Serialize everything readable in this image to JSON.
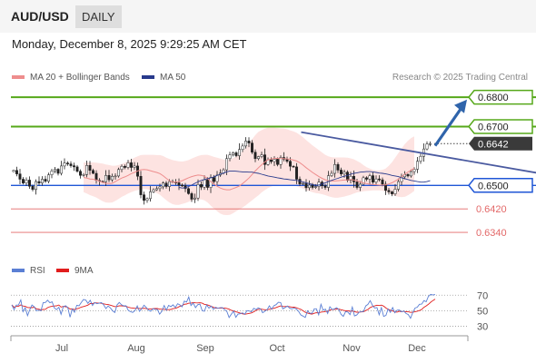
{
  "header": {
    "symbol": "AUD/USD",
    "timeframe": "DAILY",
    "datetime": "Monday, December 8, 2025 9:29:25 AM CET"
  },
  "legend": {
    "ma20_label": "MA 20 + Bollinger Bands",
    "ma50_label": "MA 50",
    "credit": "Research © 2025 Trading Central",
    "rsi_label": "RSI",
    "rsi_ma_label": "9MA"
  },
  "colors": {
    "ma20": "#ee8d8d",
    "bollinger_fill": "#fde3e1",
    "ma50": "#283a8c",
    "resistance": "#56a81a",
    "support": "#1f56d6",
    "minor_support": "#e36868",
    "trendline": "#4a5aa0",
    "arrow": "#2f64ab",
    "rsi": "#5b7fd4",
    "rsi_ma": "#e11d1d"
  },
  "chart_data": [
    {
      "type": "candlestick",
      "title": "AUD/USD",
      "timeframe": "Daily",
      "ylim": [
        0.626,
        0.6822
      ],
      "x_tick_labels": [
        "Jul",
        "Aug",
        "Sep",
        "Oct",
        "Nov",
        "Dec"
      ],
      "closes": [
        0.6551,
        0.6539,
        0.6521,
        0.6508,
        0.6518,
        0.6497,
        0.6486,
        0.6513,
        0.6508,
        0.6521,
        0.6514,
        0.6536,
        0.6549,
        0.6555,
        0.6541,
        0.6566,
        0.6576,
        0.6573,
        0.6567,
        0.6563,
        0.6548,
        0.6534,
        0.6537,
        0.6568,
        0.6551,
        0.6541,
        0.6517,
        0.6514,
        0.6512,
        0.6534,
        0.6519,
        0.6531,
        0.6532,
        0.6554,
        0.6565,
        0.6561,
        0.6577,
        0.6561,
        0.6566,
        0.6531,
        0.6468,
        0.6449,
        0.6455,
        0.6478,
        0.6485,
        0.6489,
        0.6495,
        0.6508,
        0.6496,
        0.6513,
        0.6511,
        0.6509,
        0.6501,
        0.6499,
        0.6489,
        0.6472,
        0.6453,
        0.6457,
        0.6503,
        0.6494,
        0.6519,
        0.6493,
        0.6527,
        0.6513,
        0.6535,
        0.6542,
        0.6553,
        0.6591,
        0.6604,
        0.6611,
        0.6601,
        0.6622,
        0.6634,
        0.6651,
        0.6644,
        0.6613,
        0.6591,
        0.6598,
        0.6604,
        0.6571,
        0.6587,
        0.6581,
        0.6589,
        0.6571,
        0.6595,
        0.6589,
        0.6582,
        0.6565,
        0.6563,
        0.6521,
        0.6505,
        0.6507,
        0.6492,
        0.6501,
        0.6493,
        0.6496,
        0.6511,
        0.6499,
        0.6493,
        0.6533,
        0.6541,
        0.6571,
        0.6552,
        0.6539,
        0.6545,
        0.6517,
        0.6531,
        0.6512,
        0.6493,
        0.6504,
        0.6526,
        0.6521,
        0.6533,
        0.6511,
        0.6522,
        0.6519,
        0.6504,
        0.6483,
        0.6478,
        0.6471,
        0.6487,
        0.6513,
        0.6529,
        0.6537,
        0.6532,
        0.6547,
        0.6555,
        0.6582,
        0.6599,
        0.6624,
        0.6641,
        0.6642
      ],
      "ma20": [
        0.6527,
        0.6525,
        0.6522,
        0.6521,
        0.6518,
        0.6514,
        0.651,
        0.6507,
        0.6506,
        0.6507,
        0.6513,
        0.6519,
        0.6525,
        0.6529,
        0.6534,
        0.654,
        0.6544,
        0.6549,
        0.6553,
        0.6554,
        0.6553,
        0.655,
        0.6547,
        0.6544,
        0.654,
        0.6533,
        0.6524,
        0.6516,
        0.6511,
        0.6511,
        0.6513,
        0.6516,
        0.6521,
        0.6526,
        0.653,
        0.6533,
        0.6535,
        0.6534,
        0.6531,
        0.6523,
        0.6513,
        0.6505,
        0.6497,
        0.6491,
        0.6487,
        0.6485,
        0.6485,
        0.6489,
        0.6493,
        0.6498,
        0.6506,
        0.6515,
        0.6525,
        0.6537,
        0.6549,
        0.656,
        0.657,
        0.658,
        0.6587,
        0.659,
        0.6592,
        0.6592,
        0.6591,
        0.6591,
        0.659,
        0.6589,
        0.6586,
        0.6583,
        0.6577,
        0.6569,
        0.656,
        0.6552,
        0.6544,
        0.6537,
        0.653,
        0.6524,
        0.6519,
        0.6516,
        0.6515,
        0.6515,
        0.6516,
        0.6517,
        0.6518,
        0.6519,
        0.652,
        0.6518,
        0.6515,
        0.6512,
        0.6509,
        0.6506,
        0.6504,
        0.6503,
        0.6502,
        0.6501,
        0.6501,
        0.6502,
        0.6505,
        0.6509,
        0.6515,
        0.6521,
        0.6529,
        0.6538,
        0.6545,
        0.6552,
        0.6558
      ],
      "ma20_start_index": 22,
      "bollinger_upper": [
        0.6578,
        0.6578,
        0.6578,
        0.6578,
        0.6577,
        0.6576,
        0.6574,
        0.6571,
        0.6569,
        0.6567,
        0.6567,
        0.6569,
        0.6573,
        0.6577,
        0.6582,
        0.6588,
        0.6594,
        0.6599,
        0.6603,
        0.6604,
        0.6604,
        0.6604,
        0.6604,
        0.6603,
        0.6603,
        0.66,
        0.6594,
        0.659,
        0.6586,
        0.6584,
        0.6582,
        0.6581,
        0.6583,
        0.6586,
        0.6591,
        0.6596,
        0.66,
        0.6603,
        0.6604,
        0.6604,
        0.6601,
        0.6597,
        0.6594,
        0.6591,
        0.6588,
        0.6587,
        0.6588,
        0.6593,
        0.6599,
        0.6606,
        0.6617,
        0.6629,
        0.6643,
        0.6657,
        0.6671,
        0.6682,
        0.6688,
        0.6693,
        0.6696,
        0.6696,
        0.6696,
        0.6695,
        0.6694,
        0.6693,
        0.6691,
        0.6687,
        0.6684,
        0.6679,
        0.6672,
        0.6664,
        0.6654,
        0.6645,
        0.6636,
        0.6628,
        0.662,
        0.6612,
        0.6604,
        0.6599,
        0.6596,
        0.6595,
        0.6595,
        0.6595,
        0.6595,
        0.6594,
        0.6592,
        0.6589,
        0.6583,
        0.6577,
        0.6569,
        0.6562,
        0.6557,
        0.6553,
        0.6551,
        0.6551,
        0.6553,
        0.6557,
        0.6567,
        0.6579,
        0.6594,
        0.661,
        0.6625,
        0.664,
        0.6652,
        0.6661,
        0.6667
      ],
      "bollinger_lower": [
        0.6477,
        0.6472,
        0.6467,
        0.6463,
        0.6459,
        0.6452,
        0.6446,
        0.6442,
        0.6441,
        0.6442,
        0.6447,
        0.6454,
        0.6461,
        0.6466,
        0.6472,
        0.6477,
        0.6481,
        0.6484,
        0.6487,
        0.6488,
        0.6487,
        0.6483,
        0.6479,
        0.6474,
        0.6468,
        0.6459,
        0.645,
        0.6442,
        0.6436,
        0.6434,
        0.6434,
        0.6437,
        0.644,
        0.6444,
        0.6448,
        0.6451,
        0.6452,
        0.6452,
        0.6449,
        0.6442,
        0.6431,
        0.6421,
        0.6412,
        0.6404,
        0.64,
        0.6399,
        0.64,
        0.6405,
        0.6412,
        0.6418,
        0.6425,
        0.6432,
        0.6441,
        0.6449,
        0.6458,
        0.6466,
        0.6476,
        0.6484,
        0.6491,
        0.6496,
        0.65,
        0.6502,
        0.6503,
        0.6503,
        0.6503,
        0.6502,
        0.6501,
        0.6497,
        0.6493,
        0.6489,
        0.6484,
        0.648,
        0.6477,
        0.6474,
        0.6472,
        0.647,
        0.6467,
        0.6463,
        0.646,
        0.6458,
        0.6458,
        0.646,
        0.6462,
        0.6465,
        0.6468,
        0.6472,
        0.6476,
        0.6478,
        0.648,
        0.6481,
        0.6482,
        0.6483,
        0.6483,
        0.6483,
        0.6482,
        0.6478,
        0.6473,
        0.6468,
        0.6464,
        0.6461,
        0.646,
        0.6461,
        0.6466,
        0.6473,
        0.6481
      ],
      "ma50": [
        0.6493,
        0.6491,
        0.6492,
        0.6496,
        0.6501,
        0.6507,
        0.6512,
        0.6517,
        0.652,
        0.6523,
        0.6526,
        0.6529,
        0.6534,
        0.6538,
        0.6542,
        0.6546,
        0.6549,
        0.6549,
        0.6548,
        0.6547,
        0.6546,
        0.6546,
        0.6545,
        0.6545,
        0.6543,
        0.6541,
        0.6538,
        0.6535,
        0.6532,
        0.653,
        0.6528,
        0.6526,
        0.6524,
        0.6522,
        0.6521,
        0.6519,
        0.6518,
        0.6517,
        0.6515,
        0.6512,
        0.6509,
        0.6506,
        0.6503,
        0.6501,
        0.6501,
        0.6505,
        0.6509,
        0.6513,
        0.6517,
        0.6521,
        0.6524,
        0.6528,
        0.6531,
        0.6534,
        0.6538,
        0.6541,
        0.6543,
        0.6545,
        0.6546,
        0.6547,
        0.6547,
        0.6546,
        0.6544,
        0.6542,
        0.6541,
        0.6539,
        0.6537,
        0.6534,
        0.6532,
        0.653,
        0.6526,
        0.6523,
        0.652,
        0.6517,
        0.6515,
        0.6513,
        0.6511,
        0.6511,
        0.6513,
        0.6516
      ],
      "ma50_start_index": 52,
      "horizontal_levels": [
        {
          "price": 0.68,
          "label": "0.6800",
          "style": "resistance"
        },
        {
          "price": 0.67,
          "label": "0.6700",
          "style": "resistance"
        },
        {
          "price": 0.6642,
          "label": "0.6642",
          "style": "last_price"
        },
        {
          "price": 0.65,
          "label": "0.6500",
          "style": "pivot"
        },
        {
          "price": 0.642,
          "label": "0.6420",
          "style": "support"
        },
        {
          "price": 0.634,
          "label": "0.6340",
          "style": "support"
        }
      ],
      "trendline": {
        "from": {
          "bar": 101,
          "price": 0.6681
        },
        "to": {
          "bar": 183,
          "price": 0.6528
        }
      },
      "forecast_arrow": {
        "from": {
          "bar": 189,
          "price": 0.6641
        },
        "to": {
          "bar": 204,
          "price": 0.6798
        }
      }
    },
    {
      "type": "line",
      "title": "RSI",
      "ylim": [
        20,
        82
      ],
      "y_ticks": [
        30,
        50,
        70
      ],
      "series": [
        {
          "name": "RSI",
          "values": [
            57.5,
            51.4,
            57.2,
            57.3,
            63.9,
            48.8,
            53.9,
            43.6,
            51.0,
            57.3,
            55.1,
            49.8,
            50.8,
            50.0,
            60.4,
            60.6,
            63.5,
            60.2,
            61.4,
            53.5,
            51.4,
            54.4,
            45.4,
            55.2,
            56.4,
            54.0,
            41.6,
            52.3,
            47.9,
            57.0,
            56.3,
            60.5,
            64.5,
            63.7,
            59.4,
            63.4,
            56.7,
            60.4,
            59.0,
            59.7,
            60.5,
            57.6,
            52.7,
            56.0,
            53.6,
            49.8,
            47.6,
            57.6,
            60.6,
            57.6,
            56.3,
            56.4,
            50.4,
            48.7,
            47.8,
            50.2,
            56.1,
            49.3,
            52.5,
            57.1,
            54.3,
            50.7,
            49.3,
            52.4,
            51.8,
            51.6,
            45.5,
            49.3,
            56.7,
            50.7,
            56.8,
            55.2,
            57.5,
            54.1,
            58.9,
            57.6,
            55.0,
            62.5,
            61.1,
            67.6,
            56.6,
            59.9,
            53.9,
            57.7,
            58.5,
            50.0,
            49.2,
            57.4,
            53.2,
            55.9,
            51.8,
            54.3,
            53.1,
            53.8,
            53.9,
            51.3,
            49.1,
            41.2,
            45.5,
            49.5,
            41.5,
            45.6,
            46.1,
            47.2,
            45.5,
            50.2,
            49.6,
            48.5,
            53.1,
            51.5,
            53.6,
            52.4,
            47.4,
            49.4,
            51.3,
            56.3,
            51.9,
            56.5,
            57.8,
            60.8,
            60.5,
            52.4,
            53.9,
            56.0,
            53.2,
            52.3,
            53.3,
            52.2,
            49.2,
            44.6,
            43.1,
            41.3,
            49.8,
            46.9,
            46.6,
            52.4,
            52.4,
            44.7,
            58.2,
            50.6,
            52.1,
            46.3,
            55.1,
            51.6,
            52.2,
            53.9,
            51.3,
            45.4,
            42.7,
            48.8,
            48.3,
            44.9,
            54.7,
            43.3,
            44.5,
            47.9,
            48.9,
            48.9,
            56.2,
            58.1,
            62.9,
            56.9,
            53.4,
            54.1,
            44.8,
            54.0,
            42.7,
            44.0,
            52.2,
            47.8,
            54.0,
            47.3,
            50.7,
            50.9,
            48.5,
            49.6,
            46.4,
            45.0,
            40.2,
            47.5,
            53.3,
            54.5,
            58.2,
            58.5,
            63.0,
            61.5,
            68.6,
            71.0,
            70.3,
            70.8
          ]
        },
        {
          "name": "9MA",
          "values": [
            57.5,
            54.4,
            55.4,
            55.8,
            57.4,
            56.0,
            55.7,
            54.2,
            53.9,
            53.9,
            54.5,
            52.3,
            51.9,
            51.1,
            51.6,
            51.8,
            53.9,
            55.1,
            55.8,
            56.0,
            56.3,
            57.3,
            54.6,
            55.6,
            55.1,
            54.3,
            52.0,
            52.3,
            51.5,
            52.4,
            53.2,
            54.6,
            55.3,
            56.2,
            57.2,
            59.2,
            59.2,
            60.2,
            60.0,
            59.9,
            59.5,
            58.8,
            58.2,
            57.9,
            57.1,
            56.2,
            55.2,
            55.4,
            56.4,
            56.3,
            55.9,
            55.7,
            54.5,
            53.7,
            53.5,
            53.1,
            53.0,
            52.9,
            52.9,
            53.1,
            52.6,
            52.1,
            52.1,
            52.5,
            52.9,
            52.7,
            51.9,
            51.9,
            51.8,
            51.2,
            51.3,
            51.6,
            52.6,
            53.0,
            54.2,
            55.6,
            56.5,
            58.3,
            58.6,
            59.7,
            59.6,
            60.6,
            60.1,
            60.0,
            60.2,
            59.6,
            58.1,
            57.8,
            56.7,
            55.6,
            54.4,
            53.3,
            53.3,
            53.3,
            53.4,
            53.5,
            52.9,
            51.9,
            50.4,
            49.8,
            48.6,
            47.8,
            46.8,
            46.0,
            45.4,
            46.0,
            46.5,
            47.1,
            48.6,
            50.4,
            51.6,
            52.3,
            51.7,
            51.2,
            51.2,
            51.8,
            52.3,
            53.1,
            54.0,
            55.2,
            56.1,
            55.5,
            55.3,
            55.6,
            55.2,
            54.6,
            54.5,
            53.8,
            52.7,
            51.7,
            50.0,
            47.9,
            47.0,
            46.1,
            45.6,
            46.7,
            47.4,
            47.3,
            48.2,
            48.4,
            49.0,
            49.0,
            50.8,
            51.5,
            51.7,
            52.2,
            52.1,
            51.2,
            50.5,
            50.0,
            50.0,
            49.3,
            49.6,
            48.8,
            48.1,
            48.1,
            48.4,
            48.5,
            50.2,
            51.6,
            54.1,
            55.3,
            56.1,
            57.1,
            56.6,
            57.2,
            55.9,
            53.4,
            51.8,
            50.6,
            49.7,
            48.4,
            48.2,
            49.2,
            48.7,
            49.3,
            48.6,
            48.6,
            47.8,
            48.1,
            48.6,
            49.2,
            50.2,
            51.6,
            54.4,
            56.1,
            58.2,
            61.0,
            63.0,
            64.9
          ]
        }
      ]
    }
  ]
}
